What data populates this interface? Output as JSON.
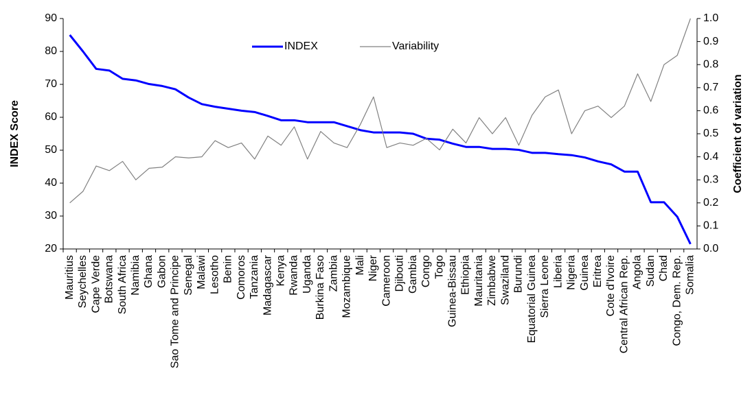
{
  "chart_data": {
    "type": "line",
    "categories": [
      "Mauritius",
      "Seychelles",
      "Cape Verde",
      "Botswana",
      "South Africa",
      "Namibia",
      "Ghana",
      "Gabon",
      "Sao Tome and Principe",
      "Senegal",
      "Malawi",
      "Lesotho",
      "Benin",
      "Comoros",
      "Tanzania",
      "Madagascar",
      "Kenya",
      "Rwanda",
      "Uganda",
      "Burkina Faso",
      "Zambia",
      "Mozambique",
      "Mali",
      "Niger",
      "Cameroon",
      "Djibouti",
      "Gambia",
      "Congo",
      "Togo",
      "Guinea-Bissau",
      "Ethiopia",
      "Mauritania",
      "Zimbabwe",
      "Swaziland",
      "Burundi",
      "Equatorial Guinea",
      "Sierra Leone",
      "Liberia",
      "Nigeria",
      "Guinea",
      "Eritrea",
      "Cote d'Ivoire",
      "Central African Rep.",
      "Angola",
      "Sudan",
      "Chad",
      "Congo, Dem. Rep.",
      "Somalia"
    ],
    "series": [
      {
        "name": "INDEX",
        "color": "#0000ff",
        "values": [
          85,
          80,
          74.7,
          74.2,
          71.7,
          71.2,
          70.1,
          69.5,
          68.5,
          66,
          64,
          63.2,
          62.6,
          62,
          61.6,
          60.4,
          59.1,
          59.1,
          58.5,
          58.5,
          58.5,
          57.3,
          56.1,
          55.4,
          55.4,
          55.4,
          55,
          53.5,
          53.2,
          52,
          51,
          51,
          50.4,
          50.4,
          50.1,
          49.2,
          49.2,
          48.8,
          48.5,
          47.8,
          46.6,
          45.7,
          43.5,
          43.5,
          34.2,
          34.2,
          29.8,
          21.5
        ]
      },
      {
        "name": "Variability",
        "color": "#808080",
        "axis": "y2",
        "values": [
          0.2,
          0.25,
          0.36,
          0.34,
          0.38,
          0.3,
          0.35,
          0.355,
          0.4,
          0.395,
          0.4,
          0.47,
          0.44,
          0.46,
          0.39,
          0.49,
          0.45,
          0.53,
          0.39,
          0.51,
          0.46,
          0.44,
          0.54,
          0.66,
          0.44,
          0.46,
          0.45,
          0.48,
          0.43,
          0.52,
          0.46,
          0.57,
          0.5,
          0.57,
          0.45,
          0.58,
          0.66,
          0.69,
          0.5,
          0.6,
          0.62,
          0.57,
          0.62,
          0.76,
          0.64,
          0.8,
          0.84,
          1.0
        ]
      }
    ],
    "ylabel": "INDEX Score",
    "y2label": "Coefficient of variation",
    "ylim": [
      20,
      90
    ],
    "yticks": [
      20,
      30,
      40,
      50,
      60,
      70,
      80,
      90
    ],
    "y2lim": [
      0,
      1
    ],
    "y2ticks": [
      {
        "value": 0,
        "label": "0.0"
      },
      0.1,
      0.2,
      0.3,
      0.4,
      0.5,
      0.6,
      0.7,
      0.8,
      0.9,
      {
        "value": 1,
        "label": "1.0"
      }
    ],
    "legend": "upper center",
    "grid": false
  }
}
